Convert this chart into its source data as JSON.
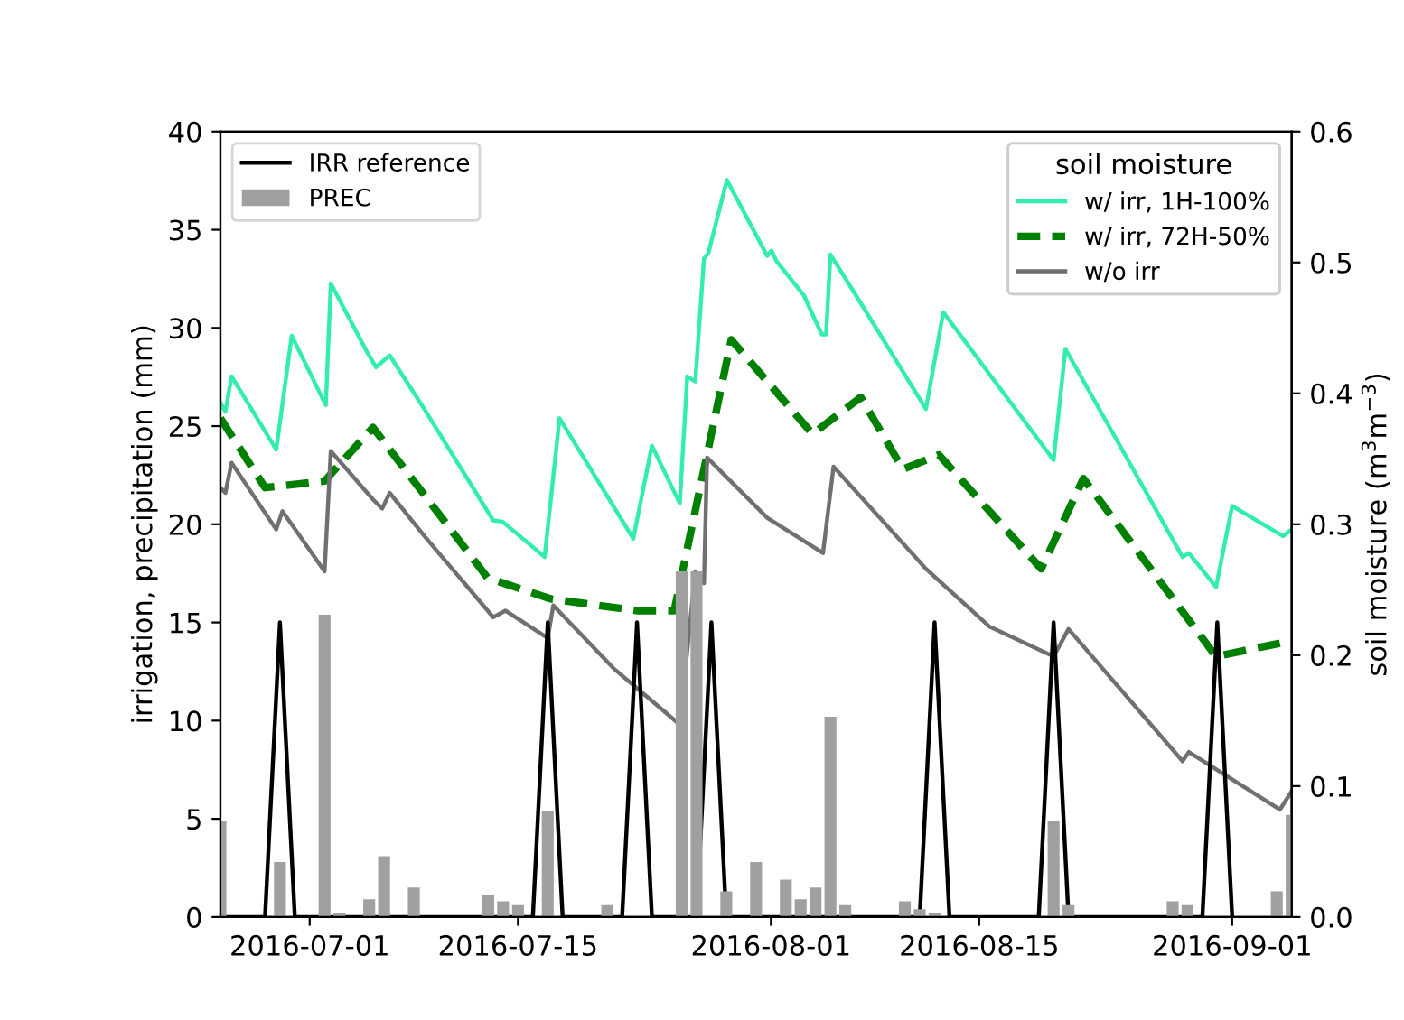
{
  "chart_data": {
    "type": "line",
    "ylabel": "irrigation, precipitation (mm)",
    "y2label": "soil moisture (m$^{3}$m$^{−3}$)",
    "legend_title": "soil moisture",
    "legend": "top left",
    "grid": false,
    "xlim": [
      "2016-06-25",
      "2016-09-05"
    ],
    "xticks": [
      "2016-07-01",
      "2016-07-15",
      "2016-08-01",
      "2016-08-15",
      "2016-09-01"
    ],
    "ylim": [
      0,
      40
    ],
    "yticks": [
      0,
      5,
      10,
      15,
      20,
      25,
      30,
      35,
      40
    ],
    "y2lim": [
      0,
      0.6
    ],
    "y2ticks": [
      {
        "value": 0,
        "label": "0.0"
      },
      {
        "value": 0.1,
        "label": "0.1"
      },
      {
        "value": 0.2,
        "label": "0.2"
      },
      {
        "value": 0.3,
        "label": "0.3"
      },
      {
        "value": 0.4,
        "label": "0.4"
      },
      {
        "value": 0.5,
        "label": "0.5"
      },
      {
        "value": 0.6,
        "label": "0.6"
      }
    ],
    "series": [
      {
        "name": "IRR reference",
        "color": "#000000",
        "line_style": "solid",
        "x": [
          "2016-06-25",
          "2016-06-28",
          "2016-06-29",
          "2016-06-30",
          "2016-07-16",
          "2016-07-17",
          "2016-07-18",
          "2016-07-22",
          "2016-07-23",
          "2016-07-24",
          "2016-07-27",
          "2016-07-28",
          "2016-07-29",
          "2016-08-11",
          "2016-08-12",
          "2016-08-13",
          "2016-08-19",
          "2016-08-20",
          "2016-08-21",
          "2016-08-30",
          "2016-08-31",
          "2016-09-01"
        ],
        "values": [
          0,
          0,
          15,
          0,
          0,
          15,
          0,
          0,
          15,
          0,
          0,
          15,
          0,
          0,
          15,
          0,
          0,
          15,
          0,
          0,
          15,
          0
        ]
      },
      {
        "name": "PREC",
        "type": "bar",
        "color": "#a0a0a0",
        "x": [
          "2016-06-25",
          "2016-06-29",
          "2016-07-02",
          "2016-07-03",
          "2016-07-05",
          "2016-07-06",
          "2016-07-08",
          "2016-07-13",
          "2016-07-14",
          "2016-07-15",
          "2016-07-17",
          "2016-07-21",
          "2016-07-26",
          "2016-07-27",
          "2016-07-29",
          "2016-07-31",
          "2016-08-02",
          "2016-08-03",
          "2016-08-04",
          "2016-08-05",
          "2016-08-06",
          "2016-08-10",
          "2016-08-11",
          "2016-08-12",
          "2016-08-20",
          "2016-08-21",
          "2016-08-28",
          "2016-08-29",
          "2016-09-04",
          "2016-09-05"
        ],
        "values": [
          4.9,
          2.8,
          15.4,
          0.2,
          0.9,
          3.1,
          1.5,
          1.1,
          0.8,
          0.6,
          5.4,
          0.6,
          17.6,
          17.6,
          1.3,
          2.8,
          1.9,
          0.9,
          1.5,
          10.2,
          0.6,
          0.8,
          0.4,
          0.2,
          4.9,
          0.6,
          0.8,
          0.6,
          1.3,
          5.2
        ]
      },
      {
        "name": "w/ irr, 1H-100%",
        "axis": "y2",
        "color": "#33eeaa",
        "line_style": "solid",
        "x": [
          "2016-06-25T00:00",
          "2016-06-25T08:00",
          "2016-06-25T18:00",
          "2016-06-28T18:00",
          "2016-06-29T19:00",
          "2016-07-02T02:00",
          "2016-07-02T10:00",
          "2016-07-04T20:00",
          "2016-07-05T11:00",
          "2016-07-06T09:00",
          "2016-07-08T17:00",
          "2016-07-09T02:00",
          "2016-07-13T08:00",
          "2016-07-13T23:00",
          "2016-07-16T19:00",
          "2016-07-17T19:00",
          "2016-07-22T18:00",
          "2016-07-24T00:00",
          "2016-07-25T21:00",
          "2016-07-26T09:00",
          "2016-07-26T22:00",
          "2016-07-27T12:00",
          "2016-07-27T19:00",
          "2016-07-29T01:00",
          "2016-07-31T18:00",
          "2016-08-01T01:00",
          "2016-08-01T09:00",
          "2016-08-03T05:00",
          "2016-08-04T10:00",
          "2016-08-04T17:00",
          "2016-08-05T00:00",
          "2016-08-06T17:00",
          "2016-08-11T10:00",
          "2016-08-12T14:00",
          "2016-08-20T00:00",
          "2016-08-20T19:00",
          "2016-08-28T16:00",
          "2016-08-29T02:00",
          "2016-08-30T22:00",
          "2016-09-01T00:00",
          "2016-09-04T10:00",
          "2016-09-05T00:00"
        ],
        "values": [
          0.393,
          0.386,
          0.413,
          0.357,
          0.444,
          0.391,
          0.484,
          0.432,
          0.42,
          0.429,
          0.388,
          0.381,
          0.303,
          0.302,
          0.275,
          0.381,
          0.289,
          0.36,
          0.316,
          0.413,
          0.409,
          0.503,
          0.507,
          0.563,
          0.505,
          0.509,
          0.501,
          0.475,
          0.445,
          0.445,
          0.506,
          0.475,
          0.388,
          0.462,
          0.349,
          0.434,
          0.275,
          0.278,
          0.252,
          0.314,
          0.291,
          0.296
        ]
      },
      {
        "name": "w/ irr, 72H-50%",
        "axis": "y2",
        "color": "#008000",
        "line_style": "dashed",
        "x": [
          "2016-06-25T00:00",
          "2016-06-28T00:00",
          "2016-07-02T00:00",
          "2016-07-05T06:00",
          "2016-07-12T23:00",
          "2016-07-17T05:00",
          "2016-07-23T01:00",
          "2016-07-25T12:00",
          "2016-07-29T08:00",
          "2016-08-03T19:00",
          "2016-08-07T01:00",
          "2016-08-09T21:00",
          "2016-08-12T07:00",
          "2016-08-19T04:00",
          "2016-08-22T00:00",
          "2016-08-30T22:00",
          "2016-09-05T00:00"
        ],
        "values": [
          0.381,
          0.328,
          0.333,
          0.374,
          0.259,
          0.243,
          0.234,
          0.234,
          0.441,
          0.369,
          0.397,
          0.342,
          0.353,
          0.266,
          0.335,
          0.199,
          0.211
        ]
      },
      {
        "name": "w/o irr",
        "axis": "y2",
        "color": "#707070",
        "line_style": "solid",
        "x": [
          "2016-06-25T00:00",
          "2016-06-25T08:00",
          "2016-06-25T18:00",
          "2016-06-28T18:00",
          "2016-06-29T04:00",
          "2016-07-02T00:00",
          "2016-07-02T10:00",
          "2016-07-05T06:00",
          "2016-07-05T21:00",
          "2016-07-06T09:00",
          "2016-07-08T17:00",
          "2016-07-13T08:00",
          "2016-07-14T04:00",
          "2016-07-17T00:00",
          "2016-07-17T09:00",
          "2016-07-21T10:00",
          "2016-07-25T21:00",
          "2016-07-26T22:00",
          "2016-07-27T12:00",
          "2016-07-27T17:00",
          "2016-07-31T18:00",
          "2016-08-04T12:00",
          "2016-08-05T05:00",
          "2016-08-11T10:00",
          "2016-08-15T16:00",
          "2016-08-20T00:00",
          "2016-08-21T00:00",
          "2016-08-28T16:00",
          "2016-08-29T02:00",
          "2016-09-04T05:00",
          "2016-09-05T00:00"
        ],
        "values": [
          0.328,
          0.324,
          0.347,
          0.296,
          0.31,
          0.264,
          0.356,
          0.319,
          0.312,
          0.324,
          0.291,
          0.229,
          0.234,
          0.213,
          0.238,
          0.19,
          0.147,
          0.264,
          0.255,
          0.351,
          0.305,
          0.278,
          0.344,
          0.266,
          0.222,
          0.199,
          0.22,
          0.119,
          0.126,
          0.082,
          0.096
        ]
      }
    ]
  }
}
